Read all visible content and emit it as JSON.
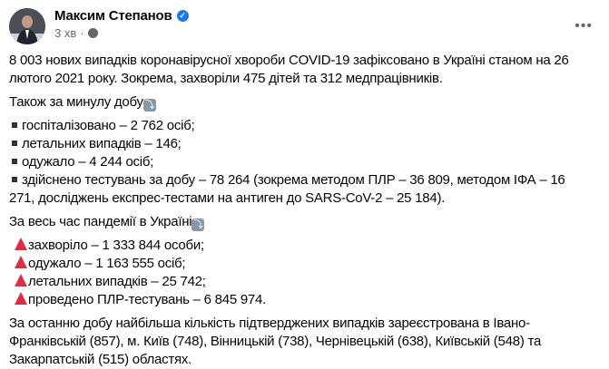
{
  "post": {
    "author": "Максим Степанов",
    "time": "3 хв",
    "separator": "·",
    "verified_icon": "verified-badge-icon",
    "privacy_icon": "globe-icon",
    "more_label": "•••"
  },
  "content": {
    "intro": [
      "8 003 нових випадків коронавірусної хвороби COVID-19 зафіксовано в Україні станом на 26",
      "лютого 2021 року. Зокрема, захворіли 475 дітей та 312 медпрацівників."
    ],
    "daily_heading": "Також за минулу добу",
    "daily_items": [
      [
        "госпіталізовано – 2 762 осіб;"
      ],
      [
        "летальних випадків – 146;"
      ],
      [
        "одужало – 4 244 осіб;"
      ],
      [
        "здійснено тестувань за добу – 78 264 (зокрема методом ПЛР – 36 809, методом ІФА – 16",
        "271, досліджень експрес-тестами на антиген до SARS-CoV-2 – 25 184)."
      ]
    ],
    "total_heading": "За весь час пандемії в Україні",
    "total_items": [
      "захворіло – 1 333 844 особи;",
      "одужало – 1 163 555 осіб;",
      "летальних випадків – 25 742;",
      "проведено ПЛР-тестувань – 6 845 974."
    ],
    "regions": [
      "За останню добу найбільша кількість підтверджених випадків зареєстрована в Івано-",
      "Франківській (857), м. Київ (748), Вінницькій (738), Чернівецькій (638), Київській (548) та",
      "Закарпатській (515) областях."
    ],
    "arrow_emoji": "⤵"
  }
}
